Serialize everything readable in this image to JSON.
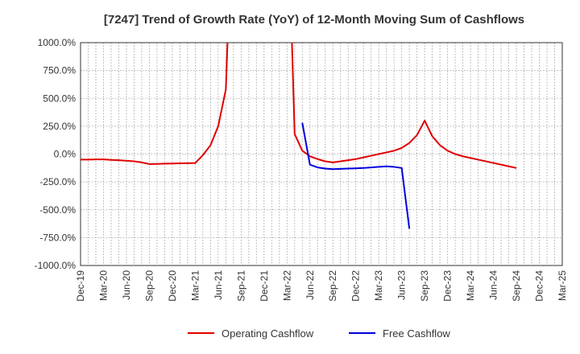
{
  "chart_data": {
    "type": "line",
    "title": "[7247]  Trend of Growth Rate (YoY) of 12-Month Moving Sum of Cashflows",
    "xlabel": "",
    "ylabel": "",
    "ylim": [
      -1000,
      1000
    ],
    "y_ticks": [
      "1000.0%",
      "750.0%",
      "500.0%",
      "250.0%",
      "0.0%",
      "-250.0%",
      "-500.0%",
      "-750.0%",
      "-1000.0%"
    ],
    "y_tick_values": [
      1000,
      750,
      500,
      250,
      0,
      -250,
      -500,
      -750,
      -1000
    ],
    "x_ticks": [
      "Dec-19",
      "Mar-20",
      "Jun-20",
      "Sep-20",
      "Dec-20",
      "Mar-21",
      "Jun-21",
      "Sep-21",
      "Dec-21",
      "Mar-22",
      "Jun-22",
      "Sep-22",
      "Dec-22",
      "Mar-23",
      "Jun-23",
      "Sep-23",
      "Dec-23",
      "Mar-24",
      "Jun-24",
      "Sep-24",
      "Dec-24",
      "Mar-25"
    ],
    "x_range": [
      "2019-12",
      "2025-03"
    ],
    "grid": true,
    "legend_position": "bottom",
    "series": [
      {
        "name": "Operating Cashflow",
        "color": "#e00000",
        "points": [
          [
            "2019-12",
            -50
          ],
          [
            "2020-01",
            -50
          ],
          [
            "2020-02",
            -48
          ],
          [
            "2020-03",
            -48
          ],
          [
            "2020-04",
            -52
          ],
          [
            "2020-05",
            -55
          ],
          [
            "2020-06",
            -60
          ],
          [
            "2020-07",
            -65
          ],
          [
            "2020-08",
            -75
          ],
          [
            "2020-09",
            -90
          ],
          [
            "2020-10",
            -88
          ],
          [
            "2020-11",
            -86
          ],
          [
            "2020-12",
            -85
          ],
          [
            "2021-01",
            -83
          ],
          [
            "2021-02",
            -82
          ],
          [
            "2021-03",
            -80
          ],
          [
            "2021-04",
            -10
          ],
          [
            "2021-05",
            80
          ],
          [
            "2021-06",
            250
          ],
          [
            "2021-07",
            580
          ],
          [
            "2021-08",
            2500
          ],
          [
            "2022-03",
            2500
          ],
          [
            "2022-04",
            180
          ],
          [
            "2022-05",
            30
          ],
          [
            "2022-06",
            -20
          ],
          [
            "2022-07",
            -45
          ],
          [
            "2022-08",
            -65
          ],
          [
            "2022-09",
            -75
          ],
          [
            "2022-10",
            -65
          ],
          [
            "2022-11",
            -55
          ],
          [
            "2022-12",
            -45
          ],
          [
            "2023-01",
            -30
          ],
          [
            "2023-02",
            -15
          ],
          [
            "2023-03",
            0
          ],
          [
            "2023-04",
            15
          ],
          [
            "2023-05",
            30
          ],
          [
            "2023-06",
            55
          ],
          [
            "2023-07",
            100
          ],
          [
            "2023-08",
            170
          ],
          [
            "2023-09",
            300
          ],
          [
            "2023-10",
            160
          ],
          [
            "2023-11",
            80
          ],
          [
            "2023-12",
            30
          ],
          [
            "2024-01",
            0
          ],
          [
            "2024-02",
            -20
          ],
          [
            "2024-03",
            -35
          ],
          [
            "2024-04",
            -50
          ],
          [
            "2024-05",
            -65
          ],
          [
            "2024-06",
            -80
          ],
          [
            "2024-07",
            -95
          ],
          [
            "2024-08",
            -110
          ],
          [
            "2024-09",
            -125
          ]
        ]
      },
      {
        "name": "Free Cashflow",
        "color": "#0000dd",
        "points": [
          [
            "2022-05",
            280
          ],
          [
            "2022-06",
            -95
          ],
          [
            "2022-07",
            -120
          ],
          [
            "2022-08",
            -130
          ],
          [
            "2022-09",
            -135
          ],
          [
            "2022-10",
            -133
          ],
          [
            "2022-11",
            -130
          ],
          [
            "2022-12",
            -128
          ],
          [
            "2023-01",
            -125
          ],
          [
            "2023-02",
            -120
          ],
          [
            "2023-03",
            -115
          ],
          [
            "2023-04",
            -110
          ],
          [
            "2023-05",
            -115
          ],
          [
            "2023-06",
            -125
          ],
          [
            "2023-07",
            -670
          ]
        ]
      }
    ]
  }
}
